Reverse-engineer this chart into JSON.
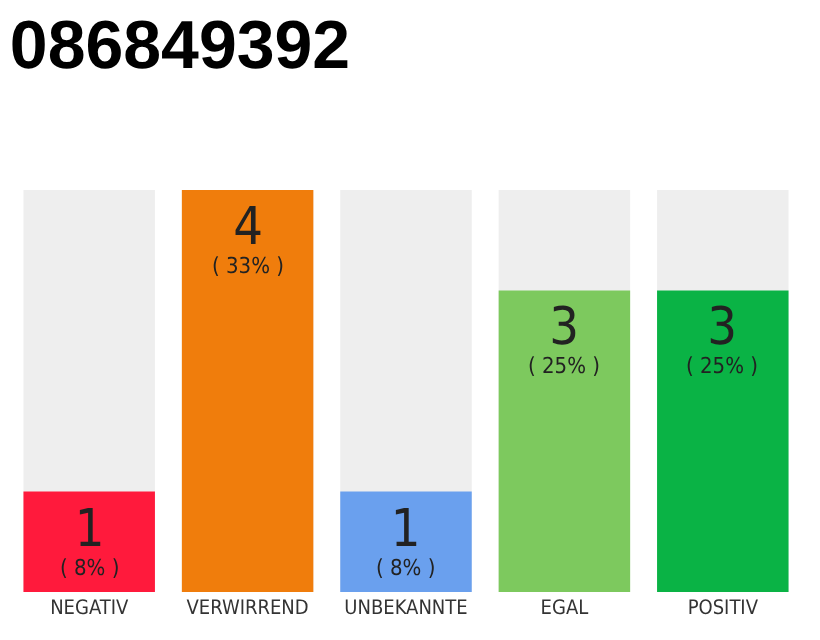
{
  "chart_data": {
    "type": "bar",
    "title": "086849392",
    "categories": [
      "NEGATIV",
      "VERWIRREND",
      "UNBEKANNTE",
      "EGAL",
      "POSITIV"
    ],
    "values": [
      1,
      4,
      1,
      3,
      3
    ],
    "colors": [
      "#ff1a3c",
      "#f07d0c",
      "#6aa0ee",
      "#7dc95e",
      "#0ab345"
    ],
    "value_labels": [
      "1\n( 8% )",
      "4\n( 33% )",
      "1\n( 8% )",
      "3\n( 25% )",
      "3\n( 25% )"
    ],
    "tick_labels": "x"
  }
}
